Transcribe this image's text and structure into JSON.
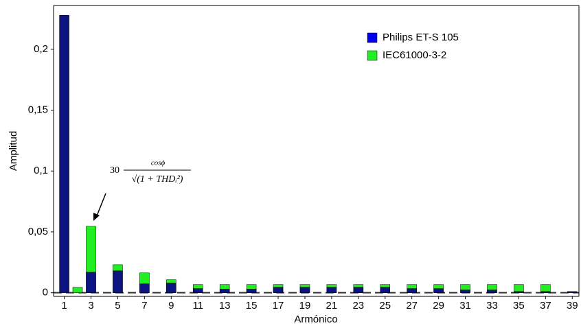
{
  "chart_data": {
    "type": "bar",
    "x_label": "Armónico",
    "y_label": "Amplitud",
    "x": [
      1,
      2,
      3,
      5,
      7,
      9,
      11,
      13,
      15,
      17,
      19,
      21,
      23,
      25,
      27,
      29,
      31,
      33,
      35,
      37,
      39
    ],
    "series": [
      {
        "name": "IEC61000-3-2",
        "color": "#22ee22",
        "values": [
          null,
          0.0045,
          0.0546,
          0.023,
          0.0163,
          0.0107,
          0.0068,
          0.0068,
          0.0068,
          0.0068,
          0.0068,
          0.0068,
          0.0068,
          0.0068,
          0.0068,
          0.0068,
          0.0068,
          0.0068,
          0.0068,
          0.0068,
          null
        ]
      },
      {
        "name": "Philips ET-S 105",
        "color": "#0b1480",
        "values": [
          0.228,
          null,
          0.0169,
          0.018,
          0.0073,
          0.0079,
          0.0034,
          0.003,
          0.003,
          0.0045,
          0.0045,
          0.0045,
          0.0045,
          0.0045,
          0.0034,
          0.0034,
          0.0023,
          0.0023,
          0.001,
          0.001,
          0.001
        ]
      }
    ],
    "legend_order": [
      1,
      0
    ],
    "legend_colors": [
      "#0000ee",
      "#22ee22"
    ],
    "xlim": [
      0.2,
      39.5
    ],
    "xticks": [
      1,
      3,
      5,
      7,
      9,
      11,
      13,
      15,
      17,
      19,
      21,
      23,
      25,
      27,
      29,
      31,
      33,
      35,
      37,
      39
    ],
    "ylim": [
      -0.003,
      0.236
    ],
    "yticks": [
      0,
      {
        "value": 0.05,
        "label": "0,05"
      },
      {
        "value": 0.1,
        "label": "0,1"
      },
      {
        "value": 0.15,
        "label": "0,15"
      },
      {
        "value": 0.2,
        "label": "0,2"
      }
    ],
    "annotation": {
      "coefficient": "30",
      "numerator": "cosϕ",
      "denominator": "√(1 + THDᵢ²)"
    },
    "legend": "upper right",
    "grid": false
  }
}
